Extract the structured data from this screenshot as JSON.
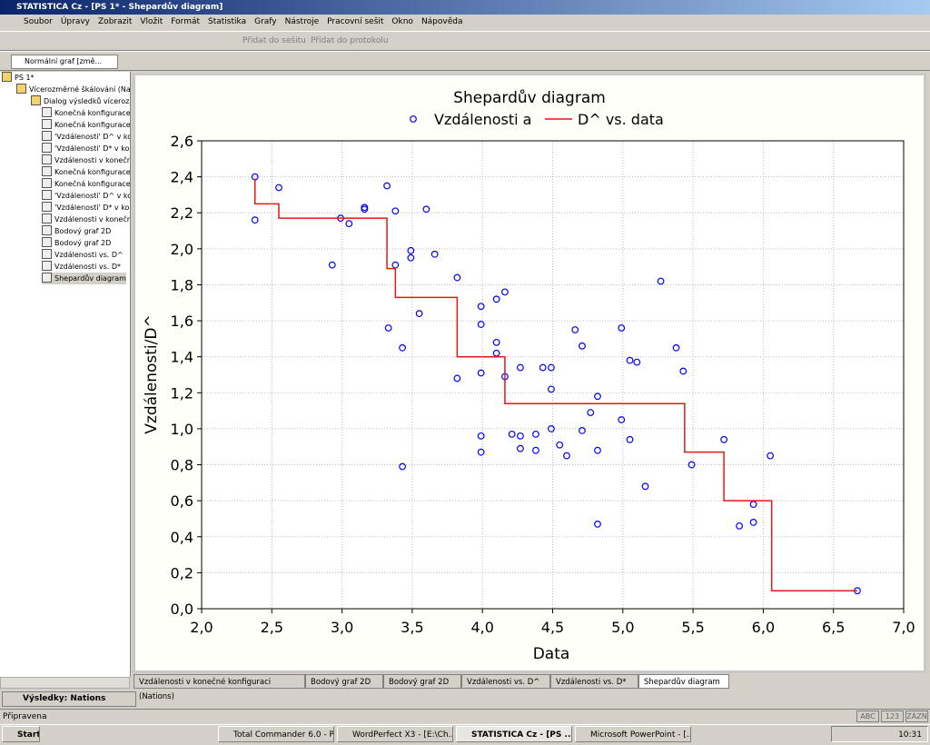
{
  "window": {
    "title": "STATISTICA Cz - [PS 1* - Shepardův diagram]"
  },
  "menu": [
    "Soubor",
    "Úpravy",
    "Zobrazit",
    "Vložit",
    "Formát",
    "Statistika",
    "Grafy",
    "Nástroje",
    "Pracovní sešit",
    "Okno",
    "Nápověda"
  ],
  "toolbar": {
    "add_workbook": "Přidat do sešitu",
    "add_report": "Přidat do protokolu",
    "graph_mode": "Normální graf [změ..."
  },
  "tree": {
    "root": "PS 1*",
    "analysis": "Vícerozměrné škálování (Nati",
    "dialog": "Dialog výsledků vícerozm",
    "items": [
      "Konečná konfigurace",
      "Konečná konfigurace",
      "'Vzdálenosti' D^ v ko",
      "'Vzdálenosti' D* v ko",
      "Vzdálenosti v konečn",
      "Konečná konfigurace",
      "Konečná konfigurace",
      "'Vzdálenosti' D^ v ko",
      "'Vzdálenosti' D* v ko",
      "Vzdálenosti v konečr",
      "Bodový graf 2D",
      "Bodový graf 2D",
      "Vzdálenosti vs. D^",
      "Vzdálenosti vs. D*",
      "Shepardův diagram"
    ]
  },
  "tabs": [
    "Vzdálenosti v konečné konfiguraci (Nations)",
    "Bodový graf 2D",
    "Bodový graf 2D",
    "Vzdálenosti vs. D^",
    "Vzdálenosti vs. D*",
    "Shepardův diagram"
  ],
  "results_tab": "Výsledky: Nations",
  "status": {
    "text": "Připravena",
    "indicators": [
      "ABC",
      "123",
      "ZÁZN"
    ]
  },
  "taskbar": {
    "start": "Start",
    "buttons": [
      "Total Commander 6.0 - P...",
      "WordPerfect X3 - [E:\\Ch...",
      "STATISTICA Cz - [PS ...",
      "Microsoft PowerPoint - [..."
    ],
    "clock": "10:31"
  },
  "chart_data": {
    "type": "scatter",
    "title": "Shepardův diagram",
    "x_label": "Data",
    "y_label": "Vzdálenosti/D^",
    "xlim": [
      2,
      7
    ],
    "ylim": [
      0,
      2.6
    ],
    "xticks": [
      {
        "value": 2,
        "label": "2,0"
      },
      {
        "value": 2.5,
        "label": "2,5"
      },
      {
        "value": 3,
        "label": "3,0"
      },
      {
        "value": 3.5,
        "label": "3,5"
      },
      {
        "value": 4,
        "label": "4,0"
      },
      {
        "value": 4.5,
        "label": "4,5"
      },
      {
        "value": 5,
        "label": "5,0"
      },
      {
        "value": 5.5,
        "label": "5,5"
      },
      {
        "value": 6,
        "label": "6,0"
      },
      {
        "value": 6.5,
        "label": "6,5"
      },
      {
        "value": 7,
        "label": "7,0"
      }
    ],
    "yticks": [
      {
        "value": 0,
        "label": "0,0"
      },
      {
        "value": 0.2,
        "label": "0,2"
      },
      {
        "value": 0.4,
        "label": "0,4"
      },
      {
        "value": 0.6,
        "label": "0,6"
      },
      {
        "value": 0.8,
        "label": "0,8"
      },
      {
        "value": 1,
        "label": "1,0"
      },
      {
        "value": 1.2,
        "label": "1,2"
      },
      {
        "value": 1.4,
        "label": "1,4"
      },
      {
        "value": 1.6,
        "label": "1,6"
      },
      {
        "value": 1.8,
        "label": "1,8"
      },
      {
        "value": 2,
        "label": "2,0"
      },
      {
        "value": 2.2,
        "label": "2,2"
      },
      {
        "value": 2.4,
        "label": "2,4"
      },
      {
        "value": 2.6,
        "label": "2,6"
      }
    ],
    "grid": true,
    "series": [
      {
        "name": "Vzdálenosti a",
        "type": "scatter",
        "color": "#0000ff",
        "x": [
          2.38,
          2.38,
          2.55,
          2.93,
          2.99,
          3.05,
          3.16,
          3.16,
          3.32,
          3.33,
          3.38,
          3.38,
          3.43,
          3.43,
          3.49,
          3.49,
          3.55,
          3.6,
          3.66,
          3.82,
          3.82,
          3.99,
          3.99,
          3.99,
          3.99,
          3.99,
          4.1,
          4.1,
          4.1,
          4.16,
          4.16,
          4.21,
          4.27,
          4.27,
          4.27,
          4.38,
          4.38,
          4.43,
          4.49,
          4.49,
          4.49,
          4.55,
          4.6,
          4.66,
          4.71,
          4.71,
          4.77,
          4.82,
          4.82,
          4.82,
          4.99,
          4.99,
          5.05,
          5.05,
          5.1,
          5.16,
          5.27,
          5.38,
          5.43,
          5.49,
          5.72,
          5.83,
          5.93,
          5.93,
          6.05,
          6.67
        ],
        "values": [
          2.4,
          2.16,
          2.34,
          1.91,
          2.17,
          2.14,
          2.23,
          2.22,
          2.35,
          1.56,
          2.21,
          1.91,
          1.45,
          0.79,
          1.99,
          1.95,
          1.64,
          2.22,
          1.97,
          1.84,
          1.28,
          1.68,
          1.58,
          1.31,
          0.96,
          0.87,
          1.72,
          1.48,
          1.42,
          1.76,
          1.29,
          0.97,
          1.34,
          0.96,
          0.89,
          0.97,
          0.88,
          1.34,
          1.34,
          1.22,
          1.0,
          0.91,
          0.85,
          1.55,
          1.46,
          0.99,
          1.09,
          1.18,
          0.88,
          0.47,
          1.56,
          1.05,
          1.38,
          0.94,
          1.37,
          0.68,
          1.82,
          1.45,
          1.32,
          0.8,
          0.94,
          0.46,
          0.58,
          0.48,
          0.85,
          0.1
        ]
      },
      {
        "name": "D^ vs. data",
        "type": "line",
        "color": "#e01818",
        "x": [
          2.38,
          2.38,
          2.55,
          2.55,
          3.32,
          3.32,
          3.38,
          3.38,
          3.82,
          3.82,
          4.16,
          4.16,
          5.44,
          5.44,
          5.72,
          5.72,
          6.06,
          6.06,
          6.67
        ],
        "values": [
          2.39,
          2.25,
          2.25,
          2.17,
          2.17,
          1.89,
          1.89,
          1.73,
          1.73,
          1.4,
          1.4,
          1.14,
          1.14,
          0.87,
          0.87,
          0.6,
          0.6,
          0.1,
          0.1
        ]
      }
    ]
  }
}
